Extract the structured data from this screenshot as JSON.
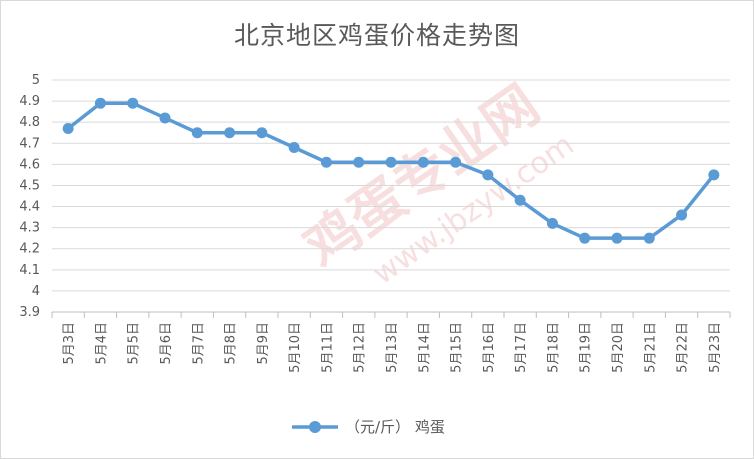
{
  "chart_data": {
    "type": "line",
    "title": "北京地区鸡蛋价格走势图",
    "xlabel": "",
    "ylabel": "",
    "categories": [
      "5月3日",
      "5月4日",
      "5月5日",
      "5月6日",
      "5月7日",
      "5月8日",
      "5月9日",
      "5月10日",
      "5月11日",
      "5月12日",
      "5月13日",
      "5月14日",
      "5月15日",
      "5月16日",
      "5月17日",
      "5月18日",
      "5月19日",
      "5月20日",
      "5月21日",
      "5月22日",
      "5月23日"
    ],
    "series": [
      {
        "name": "（元/斤） 鸡蛋",
        "values": [
          4.77,
          4.89,
          4.89,
          4.82,
          4.75,
          4.75,
          4.75,
          4.68,
          4.61,
          4.61,
          4.61,
          4.61,
          4.61,
          4.55,
          4.43,
          4.32,
          4.25,
          4.25,
          4.25,
          4.36,
          4.55
        ],
        "color": "#5b9bd5"
      }
    ],
    "yticks": [
      "3.9",
      "4",
      "4.1",
      "4.2",
      "4.3",
      "4.4",
      "4.5",
      "4.6",
      "4.7",
      "4.8",
      "4.9",
      "5"
    ],
    "ylim": [
      3.9,
      5.0
    ],
    "grid": true,
    "legend": "bottom"
  },
  "watermark": {
    "text": "鸡蛋专业网",
    "url": "www.jbzyw.com"
  }
}
